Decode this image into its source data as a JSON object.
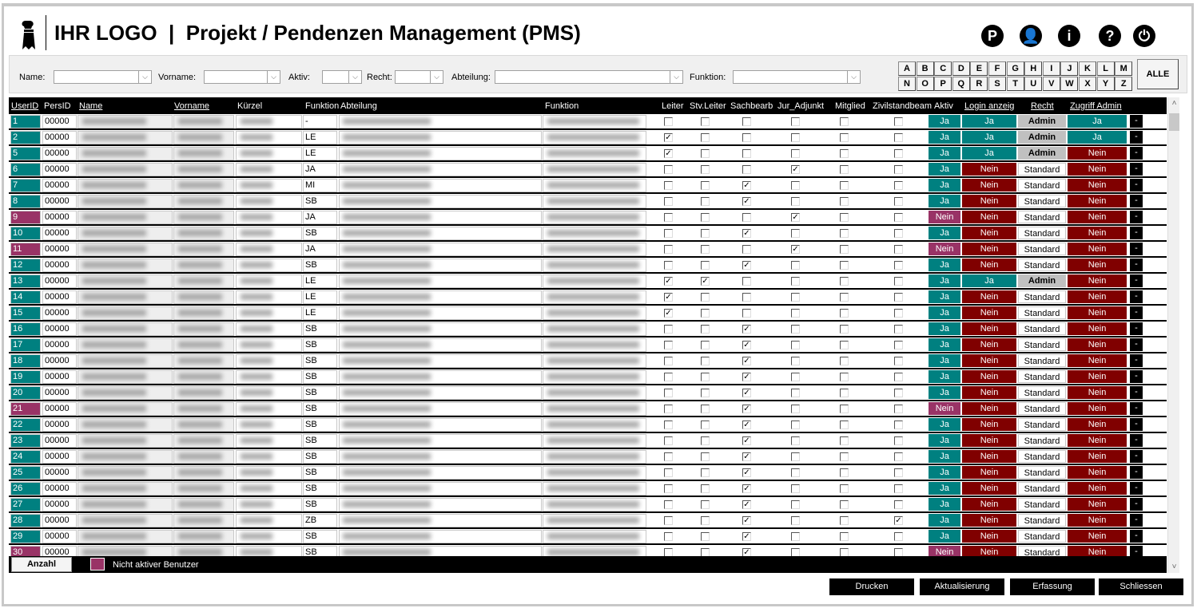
{
  "header": {
    "title": "IHR LOGO  |  Projekt / Pendenzen Management (PMS)",
    "icons": [
      {
        "name": "parking-icon",
        "glyph": "P"
      },
      {
        "name": "user-icon",
        "glyph": "👤"
      },
      {
        "name": "info-icon",
        "glyph": "i"
      },
      {
        "name": "help-icon",
        "glyph": "?"
      },
      {
        "name": "power-icon",
        "glyph": "⏻"
      }
    ]
  },
  "filters": {
    "name": "Name:",
    "vorname": "Vorname:",
    "aktiv": "Aktiv:",
    "recht": "Recht:",
    "abteilung": "Abteilung:",
    "funktion": "Funktion:",
    "arrow": "⌵"
  },
  "alphabet": [
    "A",
    "B",
    "C",
    "D",
    "E",
    "F",
    "G",
    "H",
    "I",
    "J",
    "K",
    "L",
    "M",
    "N",
    "O",
    "P",
    "Q",
    "R",
    "S",
    "T",
    "U",
    "V",
    "W",
    "X",
    "Y",
    "Z"
  ],
  "alle": "ALLE",
  "columns": {
    "userid": "UserID",
    "persid": "PersID",
    "name": "Name",
    "vorname": "Vorname",
    "kuerzel": "Kürzel",
    "funktion_code": "Funktion",
    "abteilung": "Abteilung",
    "funktion": "Funktion",
    "leiter": "Leiter",
    "stv": "Stv.Leiter",
    "sachb": "Sachbearb",
    "jur": "Jur_Adjunkt",
    "mitglied": "Mitglied",
    "zivil": "Zivilstandbeam",
    "aktiv": "Aktiv",
    "login": "Login anzeig",
    "recht": "Recht",
    "zugriff": "Zugriff Admin"
  },
  "colors": {
    "active": "#008080",
    "inactive": "#993366",
    "nein": "#800000",
    "admin": "#c0c0c0"
  },
  "rows": [
    {
      "id": "1",
      "pers": "00000",
      "fn": "-",
      "checks": [
        0,
        0,
        0,
        0,
        0,
        0
      ],
      "aktiv": "Ja",
      "login": "Ja",
      "recht": "Admin",
      "zugriff": "Ja"
    },
    {
      "id": "2",
      "pers": "00000",
      "fn": "LE",
      "checks": [
        1,
        0,
        0,
        0,
        0,
        0
      ],
      "aktiv": "Ja",
      "login": "Ja",
      "recht": "Admin",
      "zugriff": "Ja"
    },
    {
      "id": "5",
      "pers": "00000",
      "fn": "LE",
      "checks": [
        1,
        0,
        0,
        0,
        0,
        0
      ],
      "aktiv": "Ja",
      "login": "Ja",
      "recht": "Admin",
      "zugriff": "Nein"
    },
    {
      "id": "6",
      "pers": "00000",
      "fn": "JA",
      "checks": [
        0,
        0,
        0,
        1,
        0,
        0
      ],
      "aktiv": "Ja",
      "login": "Nein",
      "recht": "Standard",
      "zugriff": "Nein"
    },
    {
      "id": "7",
      "pers": "00000",
      "fn": "MI",
      "checks": [
        0,
        0,
        1,
        0,
        0,
        0
      ],
      "aktiv": "Ja",
      "login": "Nein",
      "recht": "Standard",
      "zugriff": "Nein"
    },
    {
      "id": "8",
      "pers": "00000",
      "fn": "SB",
      "checks": [
        0,
        0,
        1,
        0,
        0,
        0
      ],
      "aktiv": "Ja",
      "login": "Nein",
      "recht": "Standard",
      "zugriff": "Nein"
    },
    {
      "id": "9",
      "pers": "00000",
      "fn": "JA",
      "checks": [
        0,
        0,
        0,
        1,
        0,
        0
      ],
      "aktiv": "Nein",
      "login": "Nein",
      "recht": "Standard",
      "zugriff": "Nein"
    },
    {
      "id": "10",
      "pers": "00000",
      "fn": "SB",
      "checks": [
        0,
        0,
        1,
        0,
        0,
        0
      ],
      "aktiv": "Ja",
      "login": "Nein",
      "recht": "Standard",
      "zugriff": "Nein"
    },
    {
      "id": "11",
      "pers": "00000",
      "fn": "JA",
      "checks": [
        0,
        0,
        0,
        1,
        0,
        0
      ],
      "aktiv": "Nein",
      "login": "Nein",
      "recht": "Standard",
      "zugriff": "Nein"
    },
    {
      "id": "12",
      "pers": "00000",
      "fn": "SB",
      "checks": [
        0,
        0,
        1,
        0,
        0,
        0
      ],
      "aktiv": "Ja",
      "login": "Nein",
      "recht": "Standard",
      "zugriff": "Nein"
    },
    {
      "id": "13",
      "pers": "00000",
      "fn": "LE",
      "checks": [
        1,
        1,
        0,
        0,
        0,
        0
      ],
      "aktiv": "Ja",
      "login": "Ja",
      "recht": "Admin",
      "zugriff": "Nein"
    },
    {
      "id": "14",
      "pers": "00000",
      "fn": "LE",
      "checks": [
        1,
        0,
        0,
        0,
        0,
        0
      ],
      "aktiv": "Ja",
      "login": "Nein",
      "recht": "Standard",
      "zugriff": "Nein"
    },
    {
      "id": "15",
      "pers": "00000",
      "fn": "LE",
      "checks": [
        1,
        0,
        0,
        0,
        0,
        0
      ],
      "aktiv": "Ja",
      "login": "Nein",
      "recht": "Standard",
      "zugriff": "Nein"
    },
    {
      "id": "16",
      "pers": "00000",
      "fn": "SB",
      "checks": [
        0,
        0,
        1,
        0,
        0,
        0
      ],
      "aktiv": "Ja",
      "login": "Nein",
      "recht": "Standard",
      "zugriff": "Nein"
    },
    {
      "id": "17",
      "pers": "00000",
      "fn": "SB",
      "checks": [
        0,
        0,
        1,
        0,
        0,
        0
      ],
      "aktiv": "Ja",
      "login": "Nein",
      "recht": "Standard",
      "zugriff": "Nein"
    },
    {
      "id": "18",
      "pers": "00000",
      "fn": "SB",
      "checks": [
        0,
        0,
        1,
        0,
        0,
        0
      ],
      "aktiv": "Ja",
      "login": "Nein",
      "recht": "Standard",
      "zugriff": "Nein"
    },
    {
      "id": "19",
      "pers": "00000",
      "fn": "SB",
      "checks": [
        0,
        0,
        1,
        0,
        0,
        0
      ],
      "aktiv": "Ja",
      "login": "Nein",
      "recht": "Standard",
      "zugriff": "Nein"
    },
    {
      "id": "20",
      "pers": "00000",
      "fn": "SB",
      "checks": [
        0,
        0,
        1,
        0,
        0,
        0
      ],
      "aktiv": "Ja",
      "login": "Nein",
      "recht": "Standard",
      "zugriff": "Nein"
    },
    {
      "id": "21",
      "pers": "00000",
      "fn": "SB",
      "checks": [
        0,
        0,
        1,
        0,
        0,
        0
      ],
      "aktiv": "Nein",
      "login": "Nein",
      "recht": "Standard",
      "zugriff": "Nein"
    },
    {
      "id": "22",
      "pers": "00000",
      "fn": "SB",
      "checks": [
        0,
        0,
        1,
        0,
        0,
        0
      ],
      "aktiv": "Ja",
      "login": "Nein",
      "recht": "Standard",
      "zugriff": "Nein"
    },
    {
      "id": "23",
      "pers": "00000",
      "fn": "SB",
      "checks": [
        0,
        0,
        1,
        0,
        0,
        0
      ],
      "aktiv": "Ja",
      "login": "Nein",
      "recht": "Standard",
      "zugriff": "Nein"
    },
    {
      "id": "24",
      "pers": "00000",
      "fn": "SB",
      "checks": [
        0,
        0,
        1,
        0,
        0,
        0
      ],
      "aktiv": "Ja",
      "login": "Nein",
      "recht": "Standard",
      "zugriff": "Nein"
    },
    {
      "id": "25",
      "pers": "00000",
      "fn": "SB",
      "checks": [
        0,
        0,
        1,
        0,
        0,
        0
      ],
      "aktiv": "Ja",
      "login": "Nein",
      "recht": "Standard",
      "zugriff": "Nein"
    },
    {
      "id": "26",
      "pers": "00000",
      "fn": "SB",
      "checks": [
        0,
        0,
        1,
        0,
        0,
        0
      ],
      "aktiv": "Ja",
      "login": "Nein",
      "recht": "Standard",
      "zugriff": "Nein"
    },
    {
      "id": "27",
      "pers": "00000",
      "fn": "SB",
      "checks": [
        0,
        0,
        1,
        0,
        0,
        0
      ],
      "aktiv": "Ja",
      "login": "Nein",
      "recht": "Standard",
      "zugriff": "Nein"
    },
    {
      "id": "28",
      "pers": "00000",
      "fn": "ZB",
      "checks": [
        0,
        0,
        1,
        0,
        0,
        1
      ],
      "aktiv": "Ja",
      "login": "Nein",
      "recht": "Standard",
      "zugriff": "Nein"
    },
    {
      "id": "29",
      "pers": "00000",
      "fn": "SB",
      "checks": [
        0,
        0,
        1,
        0,
        0,
        0
      ],
      "aktiv": "Ja",
      "login": "Nein",
      "recht": "Standard",
      "zugriff": "Nein"
    },
    {
      "id": "30",
      "pers": "00000",
      "fn": "SB",
      "checks": [
        0,
        0,
        1,
        0,
        0,
        0
      ],
      "aktiv": "Nein",
      "login": "Nein",
      "recht": "Standard",
      "zugriff": "Nein"
    }
  ],
  "row_action": "-",
  "footer": {
    "anzahl": "Anzahl",
    "legend": "Nicht aktiver Benutzer"
  },
  "buttons": {
    "drucken": "Drucken",
    "aktualisierung": "Aktualisierung",
    "erfassung": "Erfassung",
    "schliessen": "Schliessen"
  },
  "scroll": {
    "up": "˄",
    "down": "˅"
  }
}
